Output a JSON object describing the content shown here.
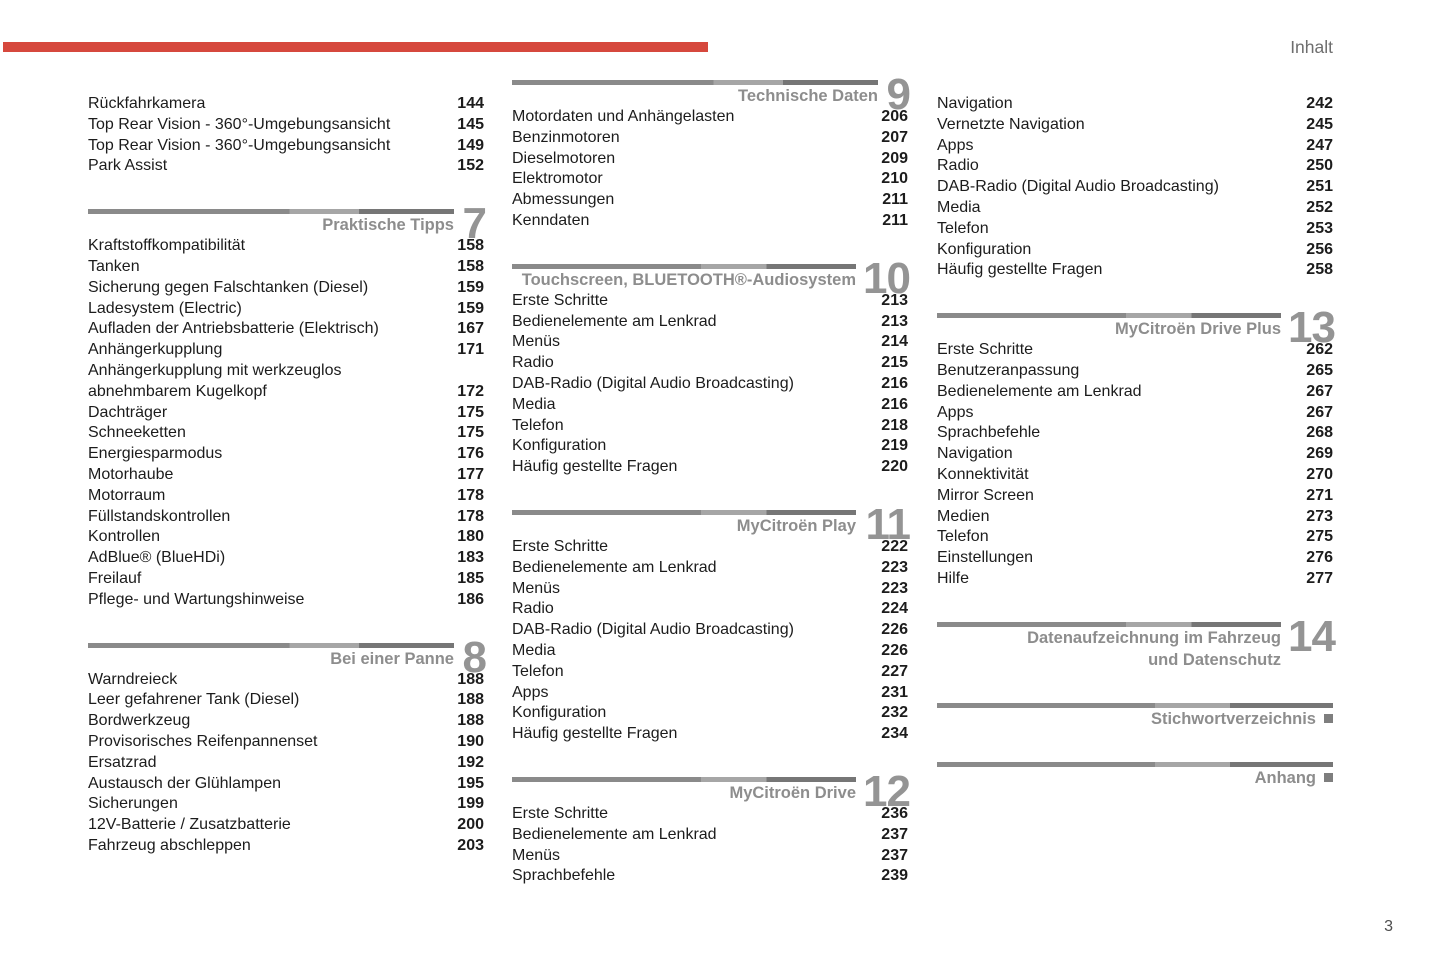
{
  "page": {
    "header_label": "Inhalt",
    "folio": "3"
  },
  "colors": {
    "accent": "#d6483d",
    "rule_dark": "#8a8a8a",
    "rule_light": "#a6a6a6",
    "heading_gray": "#8d8d8d",
    "text": "#1c1c1c",
    "muted": "#6e6e6e"
  },
  "columns": [
    {
      "blocks": [
        {
          "type": "entries",
          "items": [
            {
              "label": "Rückfahrkamera",
              "page": "144"
            },
            {
              "label": "Top Rear Vision - 360°-Umgebungsansicht",
              "page": "145"
            },
            {
              "label": "Top Rear Vision - 360°-Umgebungsansicht",
              "page": "149"
            },
            {
              "label": "Park Assist",
              "page": "152"
            }
          ]
        },
        {
          "type": "section",
          "number": "7",
          "title_lines": [
            "Praktische Tipps"
          ]
        },
        {
          "type": "entries",
          "items": [
            {
              "label": "Kraftstoffkompatibilität",
              "page": "158"
            },
            {
              "label": "Tanken",
              "page": "158"
            },
            {
              "label": "Sicherung gegen Falschtanken (Diesel)",
              "page": "159"
            },
            {
              "label": "Ladesystem (Electric)",
              "page": "159"
            },
            {
              "label": "Aufladen der Antriebsbatterie (Elektrisch)",
              "page": "167"
            },
            {
              "label": "Anhängerkupplung",
              "page": "171"
            },
            {
              "label": "Anhängerkupplung mit werkzeuglos",
              "page": ""
            },
            {
              "label": "abnehmbarem Kugelkopf",
              "page": "172"
            },
            {
              "label": "Dachträger",
              "page": "175"
            },
            {
              "label": "Schneeketten",
              "page": "175"
            },
            {
              "label": "Energiesparmodus",
              "page": "176"
            },
            {
              "label": "Motorhaube",
              "page": "177"
            },
            {
              "label": "Motorraum",
              "page": "178"
            },
            {
              "label": "Füllstandskontrollen",
              "page": "178"
            },
            {
              "label": "Kontrollen",
              "page": "180"
            },
            {
              "label": "AdBlue® (BlueHDi)",
              "page": "183"
            },
            {
              "label": "Freilauf",
              "page": "185"
            },
            {
              "label": "Pflege- und Wartungshinweise",
              "page": "186"
            }
          ]
        },
        {
          "type": "section",
          "number": "8",
          "title_lines": [
            "Bei einer Panne"
          ]
        },
        {
          "type": "entries",
          "items": [
            {
              "label": "Warndreieck",
              "page": "188"
            },
            {
              "label": "Leer gefahrener Tank (Diesel)",
              "page": "188"
            },
            {
              "label": "Bordwerkzeug",
              "page": "188"
            },
            {
              "label": "Provisorisches Reifenpannenset",
              "page": "190"
            },
            {
              "label": "Ersatzrad",
              "page": "192"
            },
            {
              "label": "Austausch der Glühlampen",
              "page": "195"
            },
            {
              "label": "Sicherungen",
              "page": "199"
            },
            {
              "label": "12V-Batterie / Zusatzbatterie",
              "page": "200"
            },
            {
              "label": "Fahrzeug abschleppen",
              "page": "203"
            }
          ]
        }
      ]
    },
    {
      "blocks": [
        {
          "type": "section",
          "number": "9",
          "title_lines": [
            "Technische Daten"
          ]
        },
        {
          "type": "entries",
          "items": [
            {
              "label": "Motordaten und Anhängelasten",
              "page": "206"
            },
            {
              "label": "Benzinmotoren",
              "page": "207"
            },
            {
              "label": "Dieselmotoren",
              "page": "209"
            },
            {
              "label": "Elektromotor",
              "page": "210"
            },
            {
              "label": "Abmessungen",
              "page": "211"
            },
            {
              "label": "Kenndaten",
              "page": "211"
            }
          ]
        },
        {
          "type": "section",
          "number": "10",
          "title_lines": [
            "Touchscreen, BLUETOOTH®-Audiosystem"
          ]
        },
        {
          "type": "entries",
          "items": [
            {
              "label": "Erste Schritte",
              "page": "213"
            },
            {
              "label": "Bedienelemente am Lenkrad",
              "page": "213"
            },
            {
              "label": "Menüs",
              "page": "214"
            },
            {
              "label": "Radio",
              "page": "215"
            },
            {
              "label": "DAB-Radio (Digital Audio Broadcasting)",
              "page": "216"
            },
            {
              "label": "Media",
              "page": "216"
            },
            {
              "label": "Telefon",
              "page": "218"
            },
            {
              "label": "Konfiguration",
              "page": "219"
            },
            {
              "label": "Häufig gestellte Fragen",
              "page": "220"
            }
          ]
        },
        {
          "type": "section",
          "number": "11",
          "title_lines": [
            "MyCitroën Play"
          ]
        },
        {
          "type": "entries",
          "items": [
            {
              "label": "Erste Schritte",
              "page": "222"
            },
            {
              "label": "Bedienelemente am Lenkrad",
              "page": "223"
            },
            {
              "label": "Menüs",
              "page": "223"
            },
            {
              "label": "Radio",
              "page": "224"
            },
            {
              "label": "DAB-Radio (Digital Audio Broadcasting)",
              "page": "226"
            },
            {
              "label": "Media",
              "page": "226"
            },
            {
              "label": "Telefon",
              "page": "227"
            },
            {
              "label": "Apps",
              "page": "231"
            },
            {
              "label": "Konfiguration",
              "page": "232"
            },
            {
              "label": "Häufig gestellte Fragen",
              "page": "234"
            }
          ]
        },
        {
          "type": "section",
          "number": "12",
          "title_lines": [
            "MyCitroën Drive"
          ]
        },
        {
          "type": "entries",
          "items": [
            {
              "label": "Erste Schritte",
              "page": "236"
            },
            {
              "label": "Bedienelemente am Lenkrad",
              "page": "237"
            },
            {
              "label": "Menüs",
              "page": "237"
            },
            {
              "label": "Sprachbefehle",
              "page": "239"
            }
          ]
        }
      ]
    },
    {
      "blocks": [
        {
          "type": "entries",
          "items": [
            {
              "label": "Navigation",
              "page": "242"
            },
            {
              "label": "Vernetzte Navigation",
              "page": "245"
            },
            {
              "label": "Apps",
              "page": "247"
            },
            {
              "label": "Radio",
              "page": "250"
            },
            {
              "label": "DAB-Radio (Digital Audio Broadcasting)",
              "page": "251"
            },
            {
              "label": "Media",
              "page": "252"
            },
            {
              "label": "Telefon",
              "page": "253"
            },
            {
              "label": "Konfiguration",
              "page": "256"
            },
            {
              "label": "Häufig gestellte Fragen",
              "page": "258"
            }
          ]
        },
        {
          "type": "section",
          "number": "13",
          "title_lines": [
            "MyCitroën Drive Plus"
          ]
        },
        {
          "type": "entries",
          "items": [
            {
              "label": "Erste Schritte",
              "page": "262"
            },
            {
              "label": "Benutzeranpassung",
              "page": "265"
            },
            {
              "label": "Bedienelemente am Lenkrad",
              "page": "267"
            },
            {
              "label": "Apps",
              "page": "267"
            },
            {
              "label": "Sprachbefehle",
              "page": "268"
            },
            {
              "label": "Navigation",
              "page": "269"
            },
            {
              "label": "Konnektivität",
              "page": "270"
            },
            {
              "label": "Mirror Screen",
              "page": "271"
            },
            {
              "label": "Medien",
              "page": "273"
            },
            {
              "label": "Telefon",
              "page": "275"
            },
            {
              "label": "Einstellungen",
              "page": "276"
            },
            {
              "label": "Hilfe",
              "page": "277"
            }
          ]
        },
        {
          "type": "section",
          "number": "14",
          "title_lines": [
            "Datenaufzeichnung im Fahrzeug",
            "und Datenschutz"
          ]
        },
        {
          "type": "index",
          "title": "Stichwortverzeichnis"
        },
        {
          "type": "index",
          "title": "Anhang"
        }
      ]
    }
  ]
}
